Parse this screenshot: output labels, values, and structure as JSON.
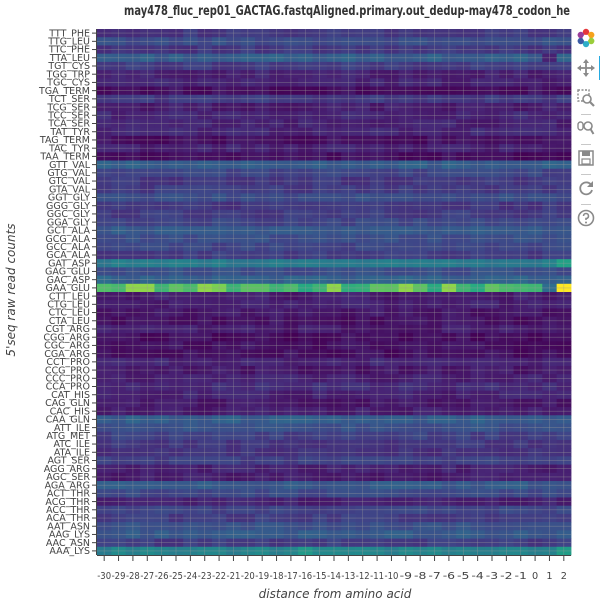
{
  "chart_data": {
    "type": "heatmap",
    "title": "may478_fluc_rep01_GACTAG.fastqAligned.primary.out_dedup-may478_codon_he",
    "xlabel": "distance from amino acid",
    "ylabel": "5'seq raw read counts",
    "x": [
      -30,
      -29,
      -28,
      -27,
      -26,
      -25,
      -24,
      -23,
      -22,
      -21,
      -20,
      -19,
      -18,
      -17,
      -16,
      -15,
      -14,
      -13,
      -12,
      -11,
      -10,
      -9,
      -8,
      -7,
      -6,
      -5,
      -4,
      -3,
      -2,
      -1,
      0,
      1,
      2
    ],
    "x_tick_labels": [
      "-30",
      "-29",
      "-28",
      "-27",
      "-26",
      "-25",
      "-24",
      "-23",
      "-22",
      "-21",
      "-20",
      "-19",
      "-18",
      "-17",
      "-16",
      "-15",
      "-14",
      "-13",
      "-12",
      "-11",
      "-10",
      "-9",
      "-8",
      "-7",
      "-6",
      "-5",
      "-4",
      "-3",
      "-2",
      "-1",
      "0",
      "1",
      "2"
    ],
    "y": [
      "TTT_PHE",
      "TTG_LEU",
      "TTC_PHE",
      "TTA_LEU",
      "TGT_CYS",
      "TGG_TRP",
      "TGC_CYS",
      "TGA_TERM",
      "TCT_SER",
      "TCG_SER",
      "TCC_SER",
      "TCA_SER",
      "TAT_TYR",
      "TAG_TERM",
      "TAC_TYR",
      "TAA_TERM",
      "GTT_VAL",
      "GTG_VAL",
      "GTC_VAL",
      "GTA_VAL",
      "GGT_GLY",
      "GGG_GLY",
      "GGC_GLY",
      "GGA_GLY",
      "GCT_ALA",
      "GCG_ALA",
      "GCC_ALA",
      "GCA_ALA",
      "GAT_ASP",
      "GAG_GLU",
      "GAC_ASP",
      "GAA_GLU",
      "CTT_LEU",
      "CTG_LEU",
      "CTC_LEU",
      "CTA_LEU",
      "CGT_ARG",
      "CGG_ARG",
      "CGC_ARG",
      "CGA_ARG",
      "CCT_PRO",
      "CCG_PRO",
      "CCC_PRO",
      "CCA_PRO",
      "CAT_HIS",
      "CAG_GLN",
      "CAC_HIS",
      "CAA_GLN",
      "ATT_ILE",
      "ATG_MET",
      "ATC_ILE",
      "ATA_ILE",
      "AGT_SER",
      "AGG_ARG",
      "AGC_SER",
      "AGA_ARG",
      "ACT_THR",
      "ACG_THR",
      "ACC_THR",
      "ACA_THR",
      "AAT_ASN",
      "AAG_LYS",
      "AAC_ASN",
      "AAA_LYS"
    ],
    "row_levels": [
      0.2,
      0.3,
      0.2,
      0.38,
      0.22,
      0.12,
      0.13,
      0.05,
      0.22,
      0.1,
      0.14,
      0.12,
      0.14,
      0.05,
      0.12,
      0.04,
      0.38,
      0.26,
      0.2,
      0.22,
      0.3,
      0.2,
      0.22,
      0.26,
      0.36,
      0.3,
      0.26,
      0.22,
      0.52,
      0.3,
      0.4,
      0.8,
      0.1,
      0.12,
      0.08,
      0.06,
      0.1,
      0.04,
      0.06,
      0.05,
      0.14,
      0.08,
      0.12,
      0.16,
      0.12,
      0.08,
      0.1,
      0.38,
      0.32,
      0.24,
      0.2,
      0.18,
      0.24,
      0.12,
      0.1,
      0.36,
      0.28,
      0.12,
      0.26,
      0.22,
      0.32,
      0.36,
      0.22,
      0.56
    ],
    "cell_overrides": [
      {
        "y": "GAA_GLU",
        "x": 2,
        "level": 1.0
      },
      {
        "y": "GAA_GLU",
        "x": 1,
        "level": 0.45
      },
      {
        "y": "GAA_GLU",
        "x": -28,
        "level": 0.9
      },
      {
        "y": "GAA_GLU",
        "x": -27,
        "level": 0.9
      },
      {
        "y": "GAA_GLU",
        "x": -23,
        "level": 0.9
      },
      {
        "y": "GAA_GLU",
        "x": -22,
        "level": 0.88
      },
      {
        "y": "GAA_GLU",
        "x": -14,
        "level": 0.9
      },
      {
        "y": "GAA_GLU",
        "x": -9,
        "level": 0.9
      },
      {
        "y": "GAA_GLU",
        "x": -6,
        "level": 0.9
      },
      {
        "y": "GAT_ASP",
        "x": 2,
        "level": 0.72
      },
      {
        "y": "AAA_LYS",
        "x": 2,
        "level": 0.7
      },
      {
        "y": "AAA_LYS",
        "x": -16,
        "level": 0.68
      },
      {
        "y": "TTA_LEU",
        "x": 1,
        "level": 0.12
      }
    ],
    "colormap": "viridis",
    "grid": true,
    "legend": "none"
  },
  "toolbar": {
    "items": [
      {
        "name": "bokeh-logo",
        "icon": "bokeh-logo"
      },
      {
        "name": "pan-tool",
        "icon": "pan-icon"
      },
      {
        "name": "box-zoom-tool",
        "icon": "box-zoom-icon"
      },
      {
        "name": "wheel-zoom-tool",
        "icon": "wheel-zoom-icon"
      },
      {
        "name": "save-tool",
        "icon": "save-icon"
      },
      {
        "name": "reset-tool",
        "icon": "reset-icon"
      },
      {
        "name": "help-tool",
        "icon": "help-icon"
      }
    ]
  },
  "colors": {
    "grid": "#9a9a9a",
    "axis": "#444444",
    "text": "#444444",
    "title": "#333333",
    "toolbar_active": "#26aae1"
  }
}
